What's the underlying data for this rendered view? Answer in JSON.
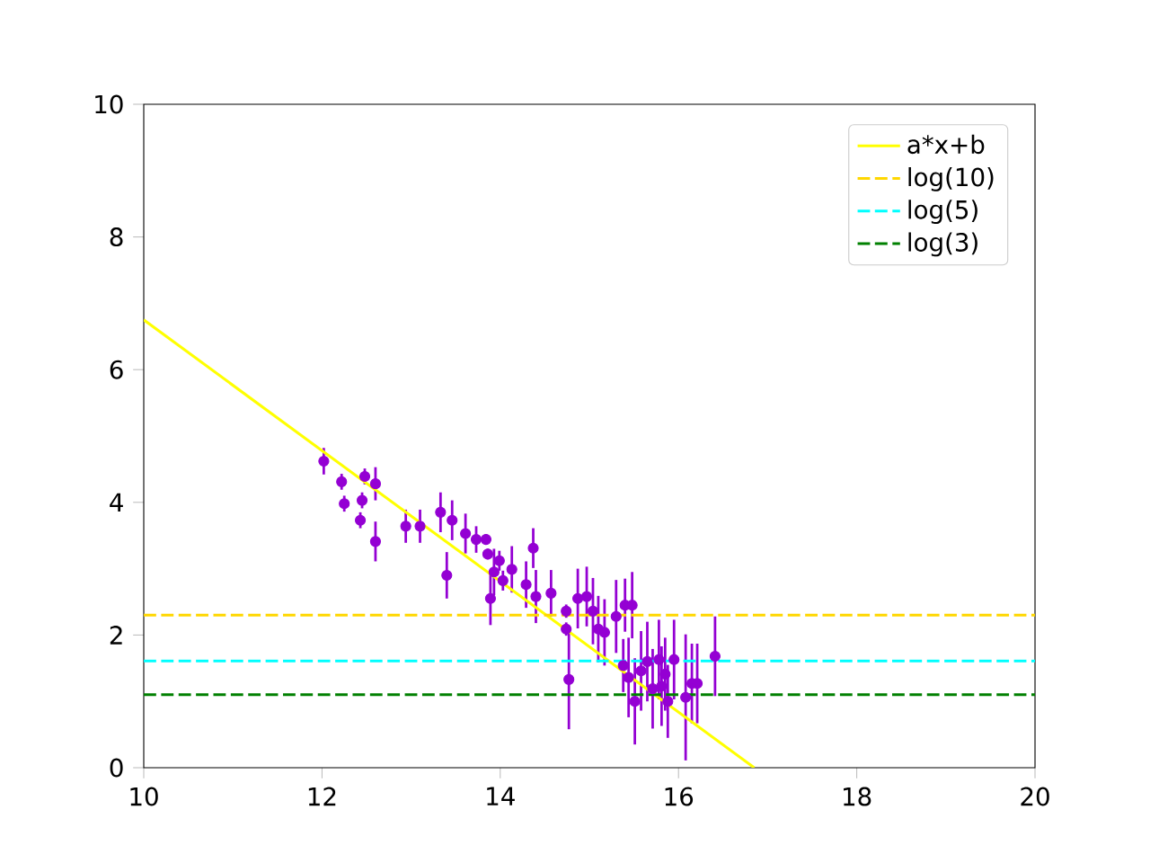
{
  "chart_data": {
    "type": "scatter",
    "xlim": [
      10,
      20
    ],
    "ylim": [
      0,
      10
    ],
    "xticks": [
      10,
      12,
      14,
      16,
      18,
      20
    ],
    "yticks": [
      0,
      2,
      4,
      6,
      8,
      10
    ],
    "legend": "top right",
    "series": [
      {
        "color": "#9400d3",
        "x": [
          12.02,
          12.22,
          12.25,
          12.48,
          12.45,
          12.43,
          12.6,
          12.6,
          12.94,
          13.1,
          13.33,
          13.4,
          13.46,
          13.61,
          13.73,
          13.84,
          13.86,
          13.93,
          13.89,
          13.99,
          14.03,
          14.13,
          14.29,
          14.37,
          14.4,
          14.57,
          14.74,
          14.74,
          14.77,
          14.87,
          14.97,
          15.04,
          15.1,
          15.17,
          15.3,
          15.38,
          15.4,
          15.48,
          15.44,
          15.51,
          15.58,
          15.65,
          15.71,
          15.78,
          15.81,
          15.85,
          15.88,
          15.95,
          16.08,
          16.15,
          16.21,
          16.41
        ],
        "values": [
          4.62,
          4.31,
          3.98,
          4.39,
          4.03,
          3.73,
          4.28,
          3.41,
          3.64,
          3.64,
          3.85,
          2.9,
          3.73,
          3.53,
          3.44,
          3.44,
          3.22,
          2.95,
          2.55,
          3.12,
          2.82,
          2.99,
          2.76,
          3.31,
          2.58,
          2.63,
          2.36,
          2.09,
          1.33,
          2.55,
          2.58,
          2.36,
          2.09,
          2.04,
          2.28,
          1.54,
          2.45,
          2.45,
          1.36,
          1.0,
          1.46,
          1.6,
          1.19,
          1.63,
          1.23,
          1.41,
          1.0,
          1.63,
          1.06,
          1.27,
          1.27,
          1.68
        ],
        "errors": [
          0.2,
          0.12,
          0.12,
          0.12,
          0.12,
          0.12,
          0.25,
          0.3,
          0.25,
          0.25,
          0.3,
          0.35,
          0.3,
          0.3,
          0.2,
          0.08,
          0.08,
          0.35,
          0.4,
          0.15,
          0.15,
          0.35,
          0.35,
          0.3,
          0.4,
          0.35,
          0.1,
          0.1,
          0.75,
          0.45,
          0.45,
          0.5,
          0.5,
          0.5,
          0.55,
          0.4,
          0.4,
          0.5,
          0.6,
          0.65,
          0.6,
          0.6,
          0.6,
          0.6,
          0.6,
          0.55,
          0.55,
          0.6,
          0.95,
          0.6,
          0.6,
          0.6
        ],
        "xerrors": [
          0.025,
          0.025,
          0.025,
          0.025,
          0.025,
          0.025,
          0.025,
          0.025,
          0.025,
          0.025,
          0.025,
          0.025,
          0.025,
          0.025,
          0.025,
          0.025,
          0.025,
          0.025,
          0.025,
          0.025,
          0.025,
          0.025,
          0.025,
          0.025,
          0.025,
          0.025,
          0.025,
          0.025,
          0.025,
          0.025,
          0.025,
          0.025,
          0.025,
          0.025,
          0.025,
          0.025,
          0.025,
          0.025,
          0.025,
          0.025,
          0.025,
          0.025,
          0.025,
          0.025,
          0.025,
          0.025,
          0.025,
          0.025,
          0.025,
          0.025,
          0.025,
          0.025
        ]
      },
      {
        "type": "line",
        "name": "a*x+b",
        "color": "#ffff00",
        "line_style": "solid",
        "x": [
          10,
          16.85
        ],
        "values": [
          6.75,
          0
        ]
      },
      {
        "type": "line",
        "name": "log(10)",
        "color": "#ffd700",
        "line_style": "dashed",
        "x": [
          10,
          20
        ],
        "values": [
          2.3,
          2.3
        ]
      },
      {
        "type": "line",
        "name": "log(5)",
        "color": "#00ffff",
        "line_style": "dashed",
        "x": [
          10,
          20
        ],
        "values": [
          1.61,
          1.61
        ]
      },
      {
        "type": "line",
        "name": "log(3)",
        "color": "#008000",
        "line_style": "dashed",
        "x": [
          10,
          20
        ],
        "values": [
          1.1,
          1.1
        ]
      }
    ]
  }
}
